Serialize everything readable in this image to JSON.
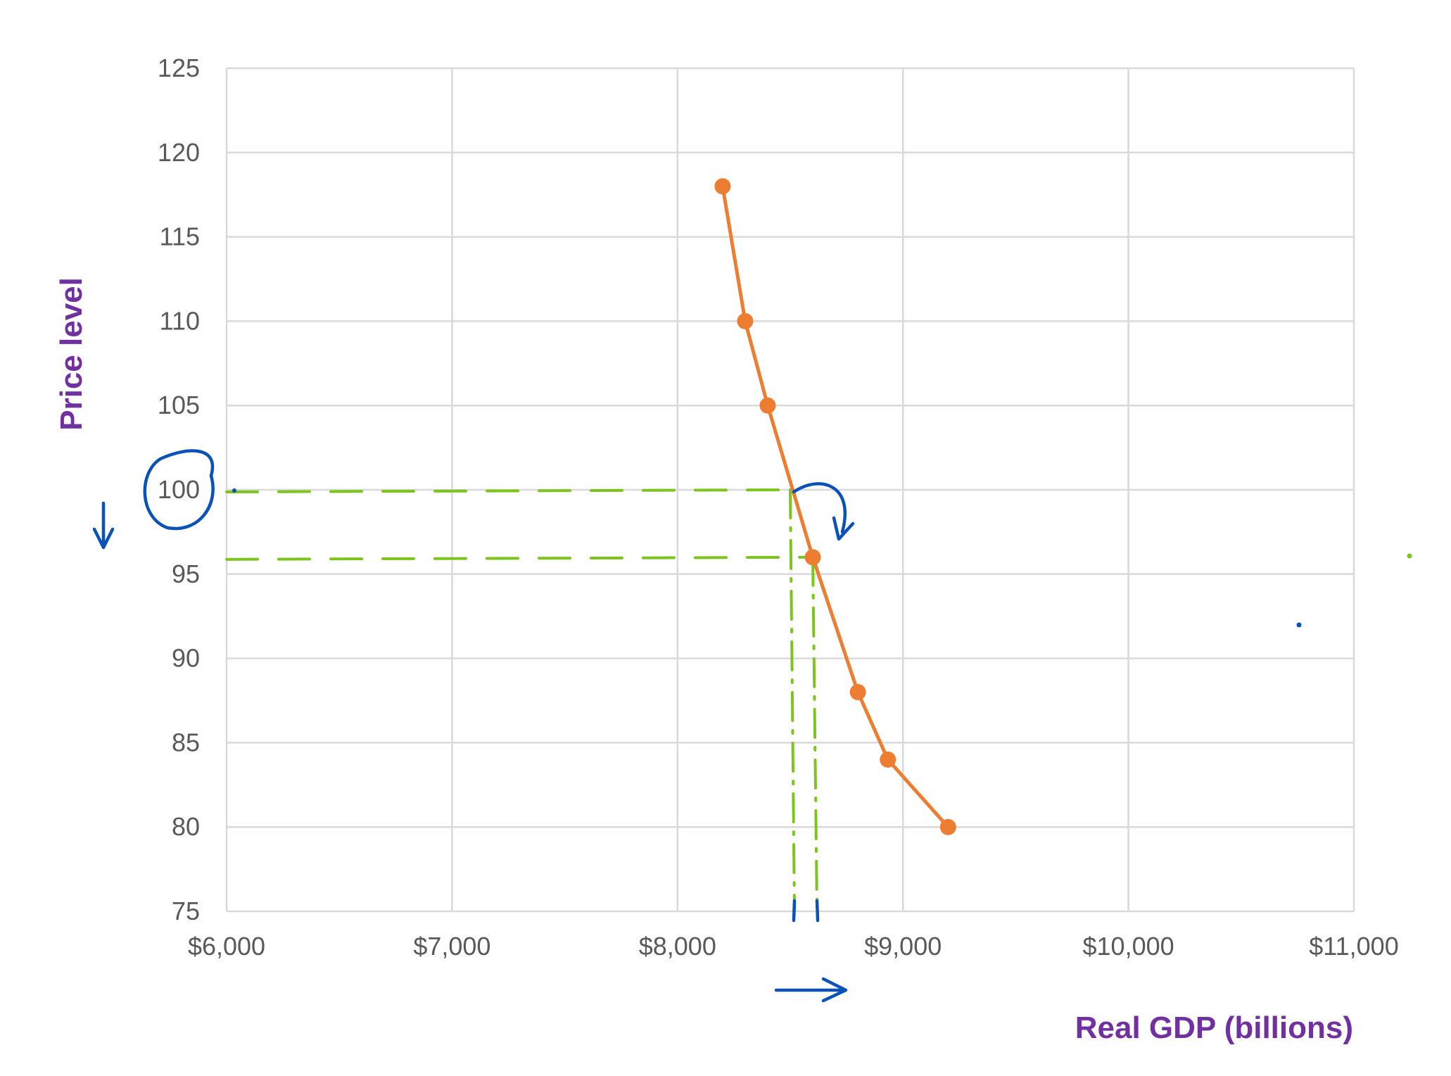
{
  "chart_data": {
    "type": "line",
    "title": "",
    "xlabel": "Real GDP (billions)",
    "ylabel": "Price level",
    "xlim": [
      6000,
      11000
    ],
    "ylim": [
      75,
      125
    ],
    "x_ticks": [
      6000,
      7000,
      8000,
      9000,
      10000,
      11000
    ],
    "x_tick_labels": [
      "$6,000",
      "$7,000",
      "$8,000",
      "$9,000",
      "$10,000",
      "$11,000"
    ],
    "y_ticks": [
      75,
      80,
      85,
      90,
      95,
      100,
      105,
      110,
      115,
      120,
      125
    ],
    "y_tick_labels": [
      "75",
      "80",
      "85",
      "90",
      "95",
      "100",
      "105",
      "110",
      "115",
      "120",
      "125"
    ],
    "grid": true,
    "legend": "none",
    "series": [
      {
        "x": [
          8200,
          8300,
          8400,
          8600,
          8800,
          8933,
          9200
        ],
        "y": [
          118,
          110,
          105,
          96,
          88,
          84,
          80
        ],
        "color": "#ed7d31"
      }
    ],
    "annotations": {
      "guide_color": "#7dc41e",
      "mark_color": "#0a52b8",
      "guides": [
        {
          "x": 8500,
          "y": 100
        },
        {
          "x": 8600,
          "y": 96
        }
      ],
      "circled_tick": 100
    },
    "colors": {
      "axis_title": "#7030a0",
      "tick_text": "#595959",
      "gridline": "#d9d9d9"
    }
  }
}
